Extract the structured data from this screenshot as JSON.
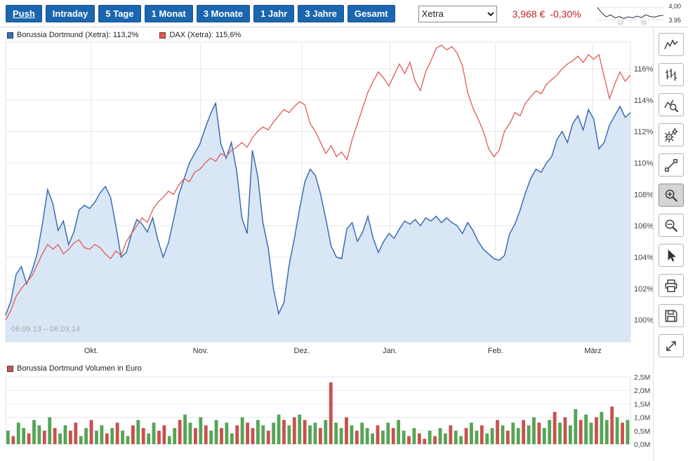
{
  "header": {
    "push_label": "Push",
    "range_buttons": [
      "Intraday",
      "5 Tage",
      "1 Monat",
      "3 Monate",
      "1 Jahr",
      "3 Jahre",
      "Gesamt"
    ],
    "exchange": {
      "value": "Xetra"
    },
    "price": "3,968 €",
    "change": "-0,30%"
  },
  "right_toolbar": {
    "active_tool": "zoom-in",
    "tools": [
      "chart-type-line",
      "chart-type-bars",
      "chart-analyze",
      "settings",
      "draw-line",
      "zoom-in",
      "zoom-out",
      "cursor",
      "print",
      "save",
      "fullscreen"
    ]
  },
  "chart_data": [
    {
      "type": "line",
      "range_label": "06.09.13 – 06.03.14",
      "ylim": [
        98.6,
        117.7
      ],
      "yticks": [
        100,
        102,
        104,
        106,
        108,
        110,
        112,
        114,
        116
      ],
      "ytick_labels": [
        "100%",
        "102%",
        "104%",
        "106%",
        "108%",
        "110%",
        "112%",
        "114%",
        "116%"
      ],
      "months": [
        {
          "label": "Okt.",
          "f": 0.137
        },
        {
          "label": "Nov.",
          "f": 0.312
        },
        {
          "label": "Dez.",
          "f": 0.474
        },
        {
          "label": "Jan.",
          "f": 0.615
        },
        {
          "label": "Feb.",
          "f": 0.784
        },
        {
          "label": "März",
          "f": 0.94
        }
      ],
      "series": [
        {
          "name": "Borussia Dortmund (Xetra)",
          "legend": "Borussia Dortmund (Xetra): 113,2%",
          "last_value": "113,2%",
          "color": "#3a6db3",
          "fill": "#d9e6f6",
          "values": [
            100.3,
            101.2,
            102.9,
            103.4,
            102.3,
            103.1,
            104.2,
            106.1,
            108.3,
            107.4,
            105.7,
            106.3,
            104.8,
            105.6,
            107.0,
            107.3,
            107.1,
            107.5,
            108.1,
            108.5,
            107.8,
            106.0,
            104.0,
            104.3,
            105.5,
            106.4,
            106.1,
            105.6,
            106.5,
            105.1,
            104.0,
            104.9,
            106.4,
            108.0,
            109.0,
            110.0,
            110.6,
            111.2,
            112.2,
            113.1,
            113.8,
            111.2,
            110.3,
            111.3,
            109.5,
            106.5,
            105.5,
            110.8,
            109.2,
            106.2,
            104.6,
            102.0,
            100.4,
            101.1,
            103.5,
            105.2,
            107.1,
            108.8,
            109.6,
            109.2,
            108.0,
            106.4,
            104.7,
            104.0,
            103.9,
            105.8,
            106.2,
            105.0,
            105.6,
            106.6,
            105.2,
            104.3,
            105.0,
            105.5,
            105.2,
            105.8,
            106.3,
            106.1,
            106.4,
            106.0,
            106.5,
            106.3,
            106.6,
            106.2,
            106.5,
            106.2,
            106.0,
            105.5,
            106.2,
            105.7,
            105.0,
            104.5,
            104.2,
            103.9,
            103.8,
            104.1,
            105.5,
            106.1,
            107.0,
            108.1,
            109.0,
            109.6,
            109.4,
            110.0,
            110.4,
            111.5,
            112.0,
            111.3,
            112.5,
            113.0,
            112.1,
            113.4,
            112.8,
            110.9,
            111.3,
            112.4,
            113.0,
            113.6,
            112.9,
            113.2
          ]
        },
        {
          "name": "DAX (Xetra)",
          "legend": "DAX (Xetra): 115,6%",
          "last_value": "115,6%",
          "color": "#e05a55",
          "values": [
            100.0,
            100.6,
            101.5,
            102.0,
            102.4,
            102.8,
            103.5,
            104.2,
            104.8,
            104.5,
            104.8,
            104.2,
            104.5,
            104.9,
            105.1,
            104.6,
            104.5,
            104.8,
            104.6,
            104.2,
            103.9,
            104.4,
            104.1,
            105.0,
            105.5,
            106.0,
            106.5,
            106.2,
            107.0,
            107.5,
            107.8,
            108.2,
            108.0,
            108.6,
            109.0,
            108.8,
            109.4,
            109.6,
            110.0,
            110.3,
            110.1,
            110.6,
            110.4,
            110.8,
            111.0,
            111.3,
            111.0,
            111.6,
            112.0,
            112.3,
            112.1,
            112.6,
            113.0,
            113.4,
            113.2,
            113.6,
            113.9,
            113.7,
            112.5,
            112.0,
            111.3,
            110.6,
            111.1,
            110.4,
            110.7,
            110.2,
            111.5,
            112.5,
            113.5,
            114.5,
            115.2,
            115.8,
            115.4,
            114.9,
            115.6,
            116.3,
            115.7,
            116.4,
            115.2,
            114.6,
            115.8,
            116.5,
            117.3,
            117.5,
            117.2,
            117.4,
            117.0,
            116.2,
            114.5,
            113.5,
            112.8,
            112.0,
            110.9,
            110.4,
            110.8,
            112.0,
            112.5,
            113.2,
            113.0,
            113.8,
            114.2,
            114.6,
            114.4,
            115.0,
            115.3,
            115.6,
            116.0,
            116.3,
            116.5,
            116.8,
            116.4,
            116.9,
            116.6,
            116.9,
            115.5,
            114.1,
            115.0,
            115.8,
            115.2,
            115.6
          ]
        }
      ]
    },
    {
      "type": "bar",
      "legend": "Borussia Dortmund Volumen in Euro",
      "legend_color": "#b4625b",
      "ylim": [
        0,
        2.5
      ],
      "yticks": [
        0,
        0.5,
        1.0,
        1.5,
        2.0,
        2.5
      ],
      "ytick_labels": [
        "0,0M",
        "0,5M",
        "1,0M",
        "1,5M",
        "2,0M",
        "2,5M"
      ],
      "palette": {
        "g": "#55a455",
        "r": "#c8514e"
      },
      "colors": "grggrggrgrggrrggrggrgrggrgrggrrggrggrgrggrggrgrrggrggrgrgrggrgrggrgrgggrggrggrgrrgrggrggrggrggrgrggrggrggrgrggrggrggrgrg",
      "values": [
        0.5,
        0.3,
        0.8,
        0.6,
        0.4,
        0.9,
        0.7,
        0.5,
        1.0,
        0.6,
        0.4,
        0.7,
        0.5,
        0.8,
        0.3,
        0.6,
        0.9,
        0.5,
        0.7,
        0.4,
        0.6,
        0.8,
        0.5,
        0.3,
        0.7,
        0.9,
        0.6,
        0.4,
        0.8,
        0.5,
        0.7,
        0.3,
        0.6,
        0.9,
        1.1,
        0.8,
        0.6,
        1.0,
        0.7,
        0.5,
        0.9,
        0.6,
        0.8,
        0.4,
        0.7,
        1.0,
        0.8,
        0.6,
        0.9,
        0.7,
        0.5,
        0.8,
        1.1,
        0.9,
        0.7,
        1.0,
        1.1,
        0.9,
        0.7,
        0.8,
        0.6,
        0.9,
        2.3,
        0.8,
        0.6,
        1.0,
        0.7,
        0.5,
        0.8,
        0.6,
        0.4,
        0.7,
        0.5,
        0.8,
        0.6,
        0.9,
        0.5,
        0.3,
        0.6,
        0.4,
        0.2,
        0.5,
        0.3,
        0.6,
        0.4,
        0.7,
        0.5,
        0.3,
        0.6,
        0.8,
        0.5,
        0.7,
        0.4,
        0.6,
        0.9,
        0.7,
        0.5,
        0.8,
        0.6,
        0.9,
        0.7,
        1.0,
        0.8,
        0.6,
        0.9,
        1.2,
        0.8,
        1.0,
        0.7,
        1.3,
        0.9,
        1.1,
        0.8,
        1.0,
        1.2,
        0.9,
        1.4,
        1.0,
        0.8,
        0.9
      ]
    },
    {
      "type": "line",
      "name": "intraday-sparkline",
      "ylim": [
        3.945,
        4.005
      ],
      "label_top": "4,00",
      "label_bottom": "3.95",
      "x_labels": [
        "12",
        "15"
      ],
      "color": "#223044",
      "values": [
        4.0,
        3.978,
        3.962,
        3.97,
        3.958,
        3.963,
        3.955,
        3.962,
        3.958,
        3.965,
        3.959,
        3.971,
        3.963,
        3.961,
        3.966,
        3.968
      ]
    }
  ]
}
